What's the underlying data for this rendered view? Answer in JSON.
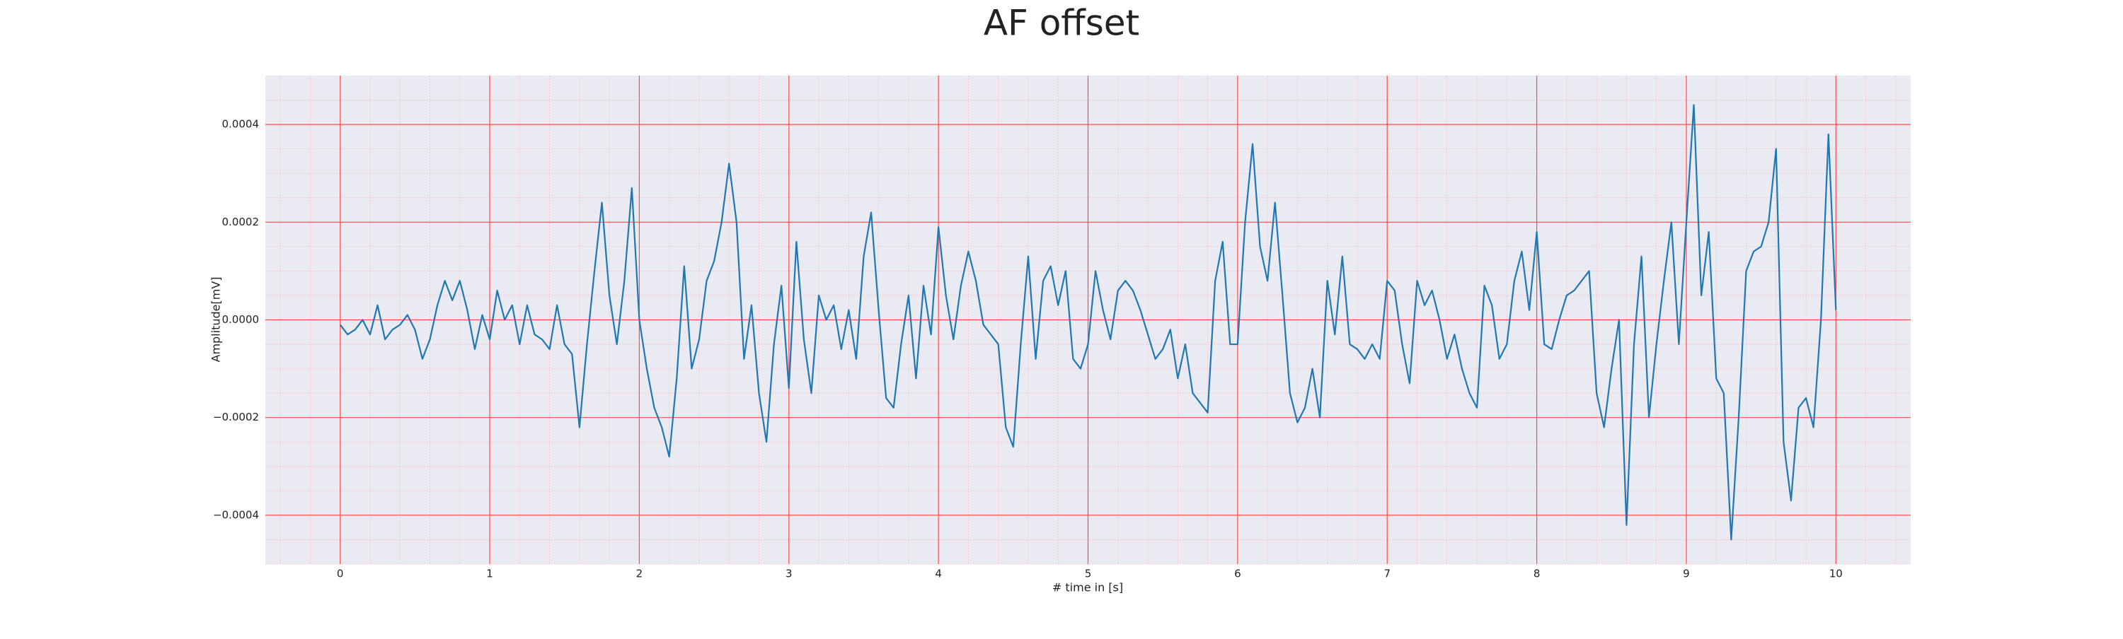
{
  "chart_data": {
    "type": "line",
    "title": "AF offset",
    "x_label": "# time in [s]",
    "y_label": "Amplitude[mV]",
    "color": "#1f77b4",
    "grid": true,
    "minor_grid": true,
    "xlim": [
      -0.5,
      10.5
    ],
    "ylim": [
      -0.0005,
      0.0005
    ],
    "xticks": [
      0,
      1,
      2,
      3,
      4,
      5,
      6,
      7,
      8,
      9,
      10
    ],
    "yticks": [
      {
        "value": -0.0004,
        "label": "−0.0004"
      },
      {
        "value": -0.0002,
        "label": "−0.0002"
      },
      {
        "value": 0,
        "label": "0.0000"
      },
      0.0002,
      0.0004
    ],
    "x": [
      0,
      0.05,
      0.1,
      0.15,
      0.2,
      0.25,
      0.3,
      0.35,
      0.4,
      0.45,
      0.5,
      0.55,
      0.6,
      0.65,
      0.7,
      0.75,
      0.8,
      0.85,
      0.9,
      0.95,
      1,
      1.05,
      1.1,
      1.15,
      1.2,
      1.25,
      1.3,
      1.35,
      1.4,
      1.45,
      1.5,
      1.55,
      1.6,
      1.65,
      1.7,
      1.75,
      1.8,
      1.85,
      1.9,
      1.95,
      2,
      2.05,
      2.1,
      2.15,
      2.2,
      2.25,
      2.3,
      2.35,
      2.4,
      2.45,
      2.5,
      2.55,
      2.6,
      2.65,
      2.7,
      2.75,
      2.8,
      2.85,
      2.9,
      2.95,
      3,
      3.05,
      3.1,
      3.15,
      3.2,
      3.25,
      3.3,
      3.35,
      3.4,
      3.45,
      3.5,
      3.55,
      3.6,
      3.65,
      3.7,
      3.75,
      3.8,
      3.85,
      3.9,
      3.95,
      4,
      4.05,
      4.1,
      4.15,
      4.2,
      4.25,
      4.3,
      4.35,
      4.4,
      4.45,
      4.5,
      4.55,
      4.6,
      4.65,
      4.7,
      4.75,
      4.8,
      4.85,
      4.9,
      4.95,
      5,
      5.05,
      5.1,
      5.15,
      5.2,
      5.25,
      5.3,
      5.35,
      5.4,
      5.45,
      5.5,
      5.55,
      5.6,
      5.65,
      5.7,
      5.75,
      5.8,
      5.85,
      5.9,
      5.95,
      6,
      6.05,
      6.1,
      6.15,
      6.2,
      6.25,
      6.3,
      6.35,
      6.4,
      6.45,
      6.5,
      6.55,
      6.6,
      6.65,
      6.7,
      6.75,
      6.8,
      6.85,
      6.9,
      6.95,
      7,
      7.05,
      7.1,
      7.15,
      7.2,
      7.25,
      7.3,
      7.35,
      7.4,
      7.45,
      7.5,
      7.55,
      7.6,
      7.65,
      7.7,
      7.75,
      7.8,
      7.85,
      7.9,
      7.95,
      8,
      8.05,
      8.1,
      8.15,
      8.2,
      8.25,
      8.3,
      8.35,
      8.4,
      8.45,
      8.5,
      8.55,
      8.6,
      8.65,
      8.7,
      8.75,
      8.8,
      8.85,
      8.9,
      8.95,
      9,
      9.05,
      9.1,
      9.15,
      9.2,
      9.25,
      9.3,
      9.35,
      9.4,
      9.45,
      9.5,
      9.55,
      9.6,
      9.65,
      9.7,
      9.75,
      9.8,
      9.85,
      9.9,
      9.95,
      10
    ],
    "values": [
      -1e-05,
      -3e-05,
      -2e-05,
      0,
      -3e-05,
      3e-05,
      -4e-05,
      -2e-05,
      -1e-05,
      1e-05,
      -2e-05,
      -8e-05,
      -4e-05,
      3e-05,
      8e-05,
      4e-05,
      8e-05,
      2e-05,
      -6e-05,
      1e-05,
      -4e-05,
      6e-05,
      0,
      3e-05,
      -5e-05,
      3e-05,
      -3e-05,
      -4e-05,
      -6e-05,
      3e-05,
      -5e-05,
      -7e-05,
      -0.00022,
      -5e-05,
      0.0001,
      0.00024,
      5e-05,
      -5e-05,
      8e-05,
      0.00027,
      0,
      -0.0001,
      -0.00018,
      -0.00022,
      -0.00028,
      -0.00012,
      0.00011,
      -0.0001,
      -4e-05,
      8e-05,
      0.00012,
      0.0002,
      0.00032,
      0.0002,
      -8e-05,
      3e-05,
      -0.00015,
      -0.00025,
      -5e-05,
      7e-05,
      -0.00014,
      0.00016,
      -4e-05,
      -0.00015,
      5e-05,
      0,
      3e-05,
      -6e-05,
      2e-05,
      -8e-05,
      0.00013,
      0.00022,
      2e-05,
      -0.00016,
      -0.00018,
      -5e-05,
      5e-05,
      -0.00012,
      7e-05,
      -3e-05,
      0.00019,
      5e-05,
      -4e-05,
      7e-05,
      0.00014,
      8e-05,
      -1e-05,
      -3e-05,
      -5e-05,
      -0.00022,
      -0.00026,
      -5e-05,
      0.00013,
      -8e-05,
      8e-05,
      0.00011,
      3e-05,
      0.0001,
      -8e-05,
      -0.0001,
      -5e-05,
      0.0001,
      2e-05,
      -4e-05,
      6e-05,
      8e-05,
      6e-05,
      2e-05,
      -3e-05,
      -8e-05,
      -6e-05,
      -2e-05,
      -0.00012,
      -5e-05,
      -0.00015,
      -0.00017,
      -0.00019,
      8e-05,
      0.00016,
      -5e-05,
      -5e-05,
      0.0002,
      0.00036,
      0.00015,
      8e-05,
      0.00024,
      5e-05,
      -0.00015,
      -0.00021,
      -0.00018,
      -0.0001,
      -0.0002,
      8e-05,
      -3e-05,
      0.00013,
      -5e-05,
      -6e-05,
      -8e-05,
      -5e-05,
      -8e-05,
      8e-05,
      6e-05,
      -5e-05,
      -0.00013,
      8e-05,
      3e-05,
      6e-05,
      0,
      -8e-05,
      -3e-05,
      -0.0001,
      -0.00015,
      -0.00018,
      7e-05,
      3e-05,
      -8e-05,
      -5e-05,
      8e-05,
      0.00014,
      2e-05,
      0.00018,
      -5e-05,
      -6e-05,
      0,
      5e-05,
      6e-05,
      8e-05,
      0.0001,
      -0.00015,
      -0.00022,
      -0.0001,
      0,
      -0.00042,
      -5e-05,
      0.00013,
      -0.0002,
      -5e-05,
      8e-05,
      0.0002,
      -5e-05,
      0.0002,
      0.00044,
      5e-05,
      0.00018,
      -0.00012,
      -0.00015,
      -0.00045,
      -0.0002,
      0.0001,
      0.00014,
      0.00015,
      0.0002,
      0.00035,
      -0.00025,
      -0.00037,
      -0.00018,
      -0.00016,
      -0.00022,
      0,
      0.00038,
      2e-05
    ]
  }
}
